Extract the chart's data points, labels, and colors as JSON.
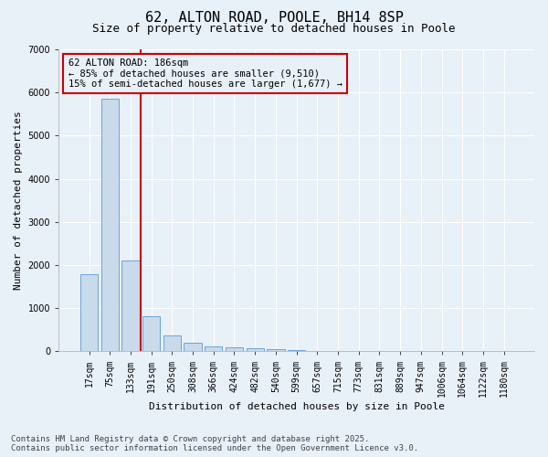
{
  "title": "62, ALTON ROAD, POOLE, BH14 8SP",
  "subtitle": "Size of property relative to detached houses in Poole",
  "xlabel": "Distribution of detached houses by size in Poole",
  "ylabel": "Number of detached properties",
  "categories": [
    "17sqm",
    "75sqm",
    "133sqm",
    "191sqm",
    "250sqm",
    "308sqm",
    "366sqm",
    "424sqm",
    "482sqm",
    "540sqm",
    "599sqm",
    "657sqm",
    "715sqm",
    "773sqm",
    "831sqm",
    "889sqm",
    "947sqm",
    "1006sqm",
    "1064sqm",
    "1122sqm",
    "1180sqm"
  ],
  "values": [
    1780,
    5850,
    2100,
    820,
    360,
    200,
    115,
    85,
    65,
    45,
    30,
    15,
    8,
    5,
    3,
    2,
    1,
    1,
    0,
    0,
    0
  ],
  "bar_color": "#c9daea",
  "bar_edge_color": "#5b9bd5",
  "background_color": "#e8f0f8",
  "vline_x": 2.5,
  "vline_color": "#cc0000",
  "annotation_text": "62 ALTON ROAD: 186sqm\n← 85% of detached houses are smaller (9,510)\n15% of semi-detached houses are larger (1,677) →",
  "annotation_box_color": "#cc0000",
  "ylim": [
    0,
    7000
  ],
  "yticks": [
    0,
    1000,
    2000,
    3000,
    4000,
    5000,
    6000,
    7000
  ],
  "footnote": "Contains HM Land Registry data © Crown copyright and database right 2025.\nContains public sector information licensed under the Open Government Licence v3.0.",
  "title_fontsize": 11,
  "subtitle_fontsize": 9,
  "axis_label_fontsize": 8,
  "tick_fontsize": 7,
  "annotation_fontsize": 7.5,
  "footnote_fontsize": 6.5
}
